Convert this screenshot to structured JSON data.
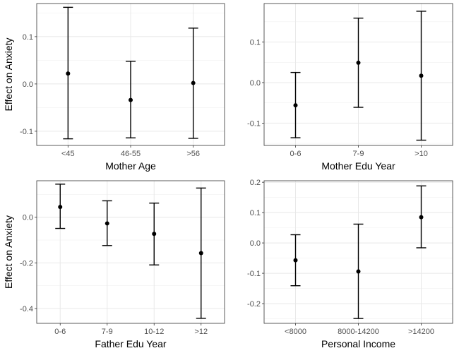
{
  "chart_data": [
    {
      "type": "errorbar",
      "xlabel": "Mother Age",
      "ylabel": "Effect on Anxiety",
      "categories": [
        "<45",
        "46-55",
        ">56"
      ],
      "estimate": [
        0.022,
        -0.034,
        0.002
      ],
      "lower": [
        -0.116,
        -0.114,
        -0.115
      ],
      "upper": [
        0.162,
        0.048,
        0.118
      ],
      "ylim": [
        -0.13,
        0.17
      ],
      "yticks": [
        -0.1,
        0.0,
        0.1
      ],
      "ytick_labels": [
        "-0.1",
        "0.0",
        "0.1"
      ],
      "grid": true
    },
    {
      "type": "errorbar",
      "xlabel": "Mother Edu Year",
      "ylabel": "",
      "categories": [
        "0-6",
        "7-9",
        ">10"
      ],
      "estimate": [
        -0.056,
        0.049,
        0.017
      ],
      "lower": [
        -0.136,
        -0.061,
        -0.142
      ],
      "upper": [
        0.025,
        0.159,
        0.176
      ],
      "ylim": [
        -0.155,
        0.195
      ],
      "yticks": [
        -0.1,
        0.0,
        0.1
      ],
      "ytick_labels": [
        "-0.1",
        "0.0",
        "0.1"
      ],
      "grid": true
    },
    {
      "type": "errorbar",
      "xlabel": "Father Edu Year",
      "ylabel": "Effect on Anxiety",
      "categories": [
        "0-6",
        "7-9",
        "10-12",
        ">12"
      ],
      "estimate": [
        0.045,
        -0.027,
        -0.073,
        -0.157
      ],
      "lower": [
        -0.049,
        -0.124,
        -0.209,
        -0.443
      ],
      "upper": [
        0.145,
        0.072,
        0.062,
        0.128
      ],
      "ylim": [
        -0.465,
        0.16
      ],
      "yticks": [
        -0.4,
        -0.2,
        0.0
      ],
      "ytick_labels": [
        "-0.4",
        "-0.2",
        "0.0"
      ],
      "grid": true
    },
    {
      "type": "errorbar",
      "xlabel": "Personal Income",
      "ylabel": "",
      "categories": [
        "<8000",
        "8000-14200",
        ">14200"
      ],
      "estimate": [
        -0.057,
        -0.094,
        0.085
      ],
      "lower": [
        -0.141,
        -0.249,
        -0.016
      ],
      "upper": [
        0.027,
        0.062,
        0.188
      ],
      "ylim": [
        -0.265,
        0.205
      ],
      "yticks": [
        -0.2,
        -0.1,
        0.0,
        0.1,
        0.2
      ],
      "ytick_labels": [
        "-0.2",
        "-0.1",
        "0.0",
        "0.1",
        "0.2"
      ],
      "grid": true
    }
  ]
}
